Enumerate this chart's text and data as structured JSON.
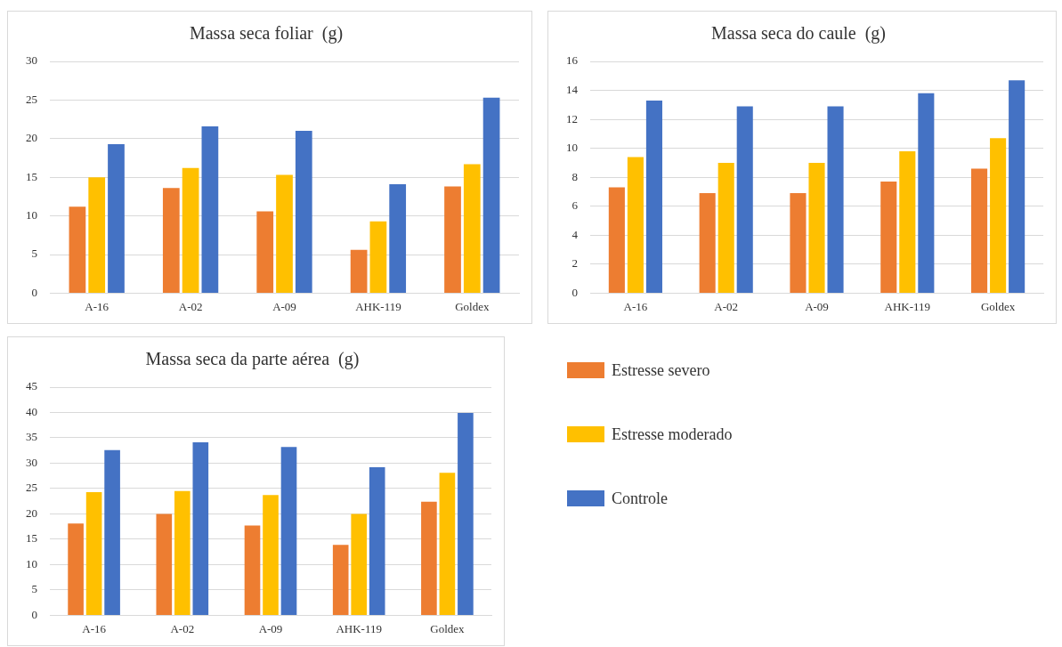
{
  "chart_data": [
    {
      "type": "bar",
      "title": "Massa seca foliar  (g)",
      "categories": [
        "A-16",
        "A-02",
        "A-09",
        "AHK-119",
        "Goldex"
      ],
      "series": [
        {
          "color": "#ed7d31",
          "values": [
            11.2,
            13.6,
            10.6,
            5.6,
            13.8
          ]
        },
        {
          "color": "#ffc000",
          "values": [
            15.0,
            16.2,
            15.3,
            9.3,
            16.7
          ]
        },
        {
          "color": "#4472c4",
          "values": [
            19.3,
            21.6,
            21.0,
            14.1,
            25.3
          ]
        }
      ],
      "ylim": [
        0,
        30
      ],
      "yticks": [
        0,
        5,
        10,
        15,
        20,
        25,
        30
      ],
      "grid": "y",
      "legend": false
    },
    {
      "type": "bar",
      "title": "Massa seca do caule  (g)",
      "categories": [
        "A-16",
        "A-02",
        "A-09",
        "AHK-119",
        "Goldex"
      ],
      "series": [
        {
          "color": "#ed7d31",
          "values": [
            7.3,
            6.9,
            6.9,
            7.7,
            8.6
          ]
        },
        {
          "color": "#ffc000",
          "values": [
            9.4,
            9.0,
            9.0,
            9.8,
            10.7
          ]
        },
        {
          "color": "#4472c4",
          "values": [
            13.3,
            12.9,
            12.9,
            13.8,
            14.7
          ]
        }
      ],
      "ylim": [
        0,
        16
      ],
      "yticks": [
        0,
        2,
        4,
        6,
        8,
        10,
        12,
        14,
        16
      ],
      "grid": "y",
      "legend": false
    },
    {
      "type": "bar",
      "title": "Massa seca da parte aérea  (g)",
      "categories": [
        "A-16",
        "A-02",
        "A-09",
        "AHK-119",
        "Goldex"
      ],
      "series": [
        {
          "name": "Estresse severo",
          "color": "#ed7d31",
          "values": [
            18.1,
            20.0,
            17.7,
            13.9,
            22.4
          ]
        },
        {
          "name": "Estresse moderado",
          "color": "#ffc000",
          "values": [
            24.3,
            24.5,
            23.7,
            20.0,
            28.1
          ]
        },
        {
          "name": "Controle",
          "color": "#4472c4",
          "values": [
            32.6,
            34.1,
            33.2,
            29.2,
            39.9
          ]
        }
      ],
      "ylim": [
        0,
        45
      ],
      "yticks": [
        0,
        5,
        10,
        15,
        20,
        25,
        30,
        35,
        40,
        45
      ],
      "grid": "y",
      "legend": "right"
    }
  ]
}
